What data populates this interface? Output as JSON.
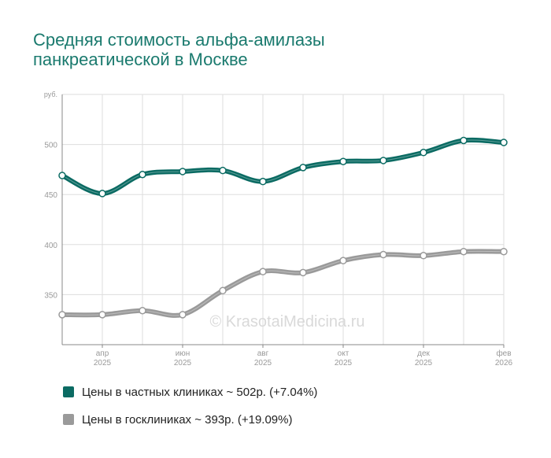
{
  "title_lines": [
    "Средняя стоимость альфа-амилазы",
    "панкреатической в Москве"
  ],
  "watermark": "© KrasotaiMedicina.ru",
  "colors": {
    "private": "#0b6b63",
    "public": "#9a9a9a",
    "grid": "#dddddd",
    "axis": "#888888",
    "tick_text": "#999999"
  },
  "chart_data": {
    "type": "line",
    "ylabel": "руб.",
    "ylim": [
      300,
      550
    ],
    "yticks": [
      350,
      400,
      450,
      500
    ],
    "x_tick_labels": [
      {
        "month": "апр",
        "year": "2025",
        "index": 1
      },
      {
        "month": "июн",
        "year": "2025",
        "index": 3
      },
      {
        "month": "авг",
        "year": "2025",
        "index": 5
      },
      {
        "month": "окт",
        "year": "2025",
        "index": 7
      },
      {
        "month": "дек",
        "year": "2025",
        "index": 9
      },
      {
        "month": "фев",
        "year": "2026",
        "index": 11
      }
    ],
    "x": [
      "2025-03",
      "2025-04",
      "2025-05",
      "2025-06",
      "2025-07",
      "2025-08",
      "2025-09",
      "2025-10",
      "2025-11",
      "2025-12",
      "2026-01",
      "2026-02"
    ],
    "series": [
      {
        "name": "Цены в частных клиниках ~ 502р. (+7.04%)",
        "values": [
          469,
          451,
          470,
          473,
          474,
          463,
          477,
          483,
          484,
          492,
          504,
          502
        ]
      },
      {
        "name": "Цены в госклиниках ~ 393р. (+19.09%)",
        "values": [
          330,
          330,
          334,
          330,
          354,
          373,
          372,
          384,
          390,
          389,
          393,
          393
        ]
      }
    ]
  }
}
